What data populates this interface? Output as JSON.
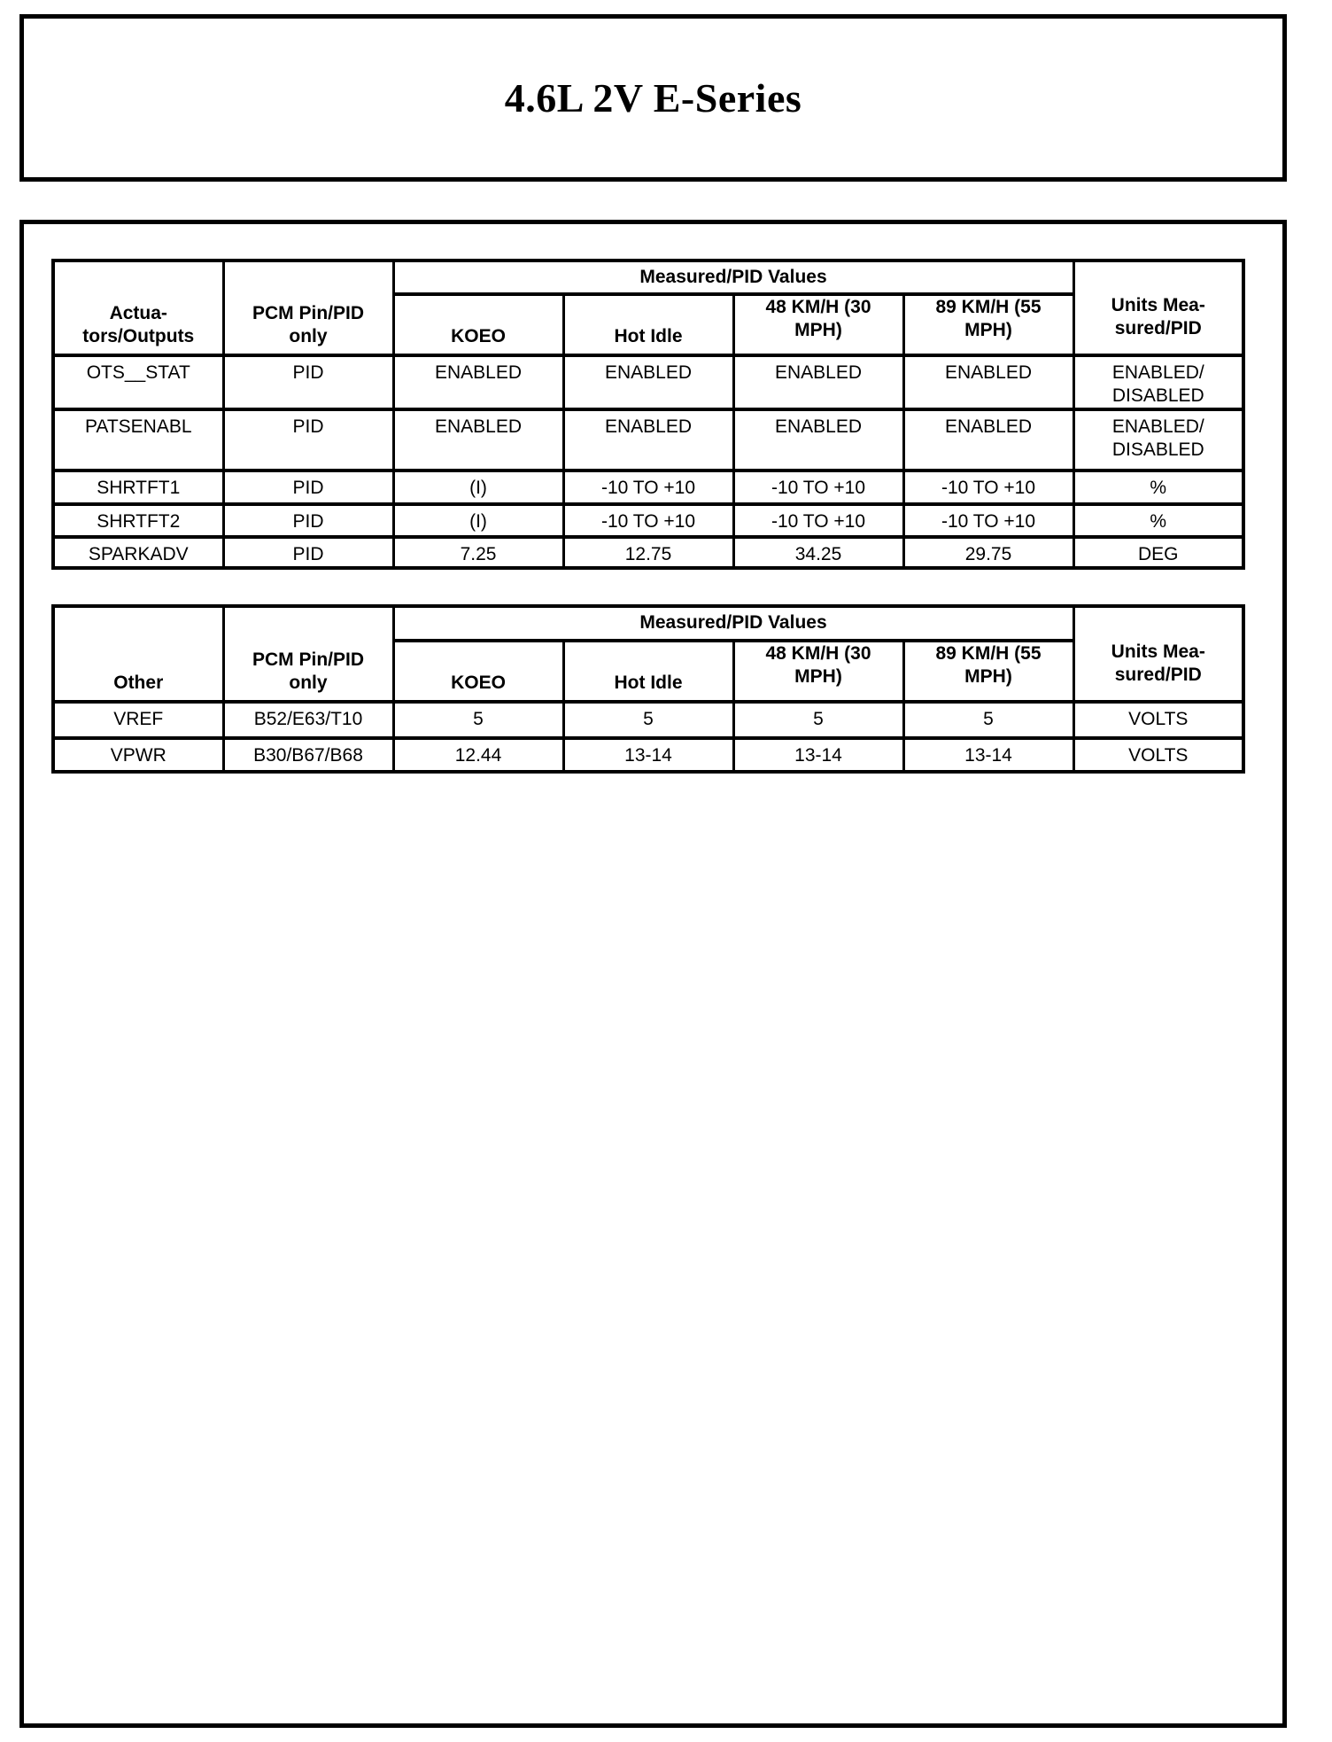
{
  "title": "4.6L 2V E-Series",
  "colors": {
    "text": "#000000",
    "background": "#ffffff",
    "border": "#000000"
  },
  "tables": [
    {
      "name": "actuators-outputs",
      "row_header_label": "Actua-\ntors/Outputs",
      "pin_header_label": "PCM Pin/PID\nonly",
      "measured_header_label": "Measured/PID Values",
      "condition_labels": [
        "KOEO",
        "Hot Idle",
        "48 KM/H (30\nMPH)",
        "89 KM/H (55\nMPH)"
      ],
      "units_header_label": "Units Mea-\nsured/PID",
      "rows": [
        {
          "cells": [
            "OTS__STAT",
            "PID",
            "ENABLED",
            "ENABLED",
            "ENABLED",
            "ENABLED",
            "ENABLED/\nDISABLED"
          ]
        },
        {
          "cells": [
            "PATSENABL",
            "PID",
            "ENABLED",
            "ENABLED",
            "ENABLED",
            "ENABLED",
            "ENABLED/\nDISABLED"
          ]
        },
        {
          "cells": [
            "SHRTFT1",
            "PID",
            "(I)",
            "-10 TO +10",
            "-10 TO +10",
            "-10 TO +10",
            "%"
          ]
        },
        {
          "cells": [
            "SHRTFT2",
            "PID",
            "(I)",
            "-10 TO +10",
            "-10 TO +10",
            "-10 TO +10",
            "%"
          ]
        },
        {
          "cells": [
            "SPARKADV",
            "PID",
            "7.25",
            "12.75",
            "34.25",
            "29.75",
            "DEG"
          ]
        }
      ]
    },
    {
      "name": "other",
      "row_header_label": "Other",
      "pin_header_label": "PCM Pin/PID\nonly",
      "measured_header_label": "Measured/PID Values",
      "condition_labels": [
        "KOEO",
        "Hot Idle",
        "48 KM/H (30\nMPH)",
        "89 KM/H (55\nMPH)"
      ],
      "units_header_label": "Units Mea-\nsured/PID",
      "rows": [
        {
          "cells": [
            "VREF",
            "B52/E63/T10",
            "5",
            "5",
            "5",
            "5",
            "VOLTS"
          ]
        },
        {
          "cells": [
            "VPWR",
            "B30/B67/B68",
            "12.44",
            "13-14",
            "13-14",
            "13-14",
            "VOLTS"
          ]
        }
      ]
    }
  ]
}
